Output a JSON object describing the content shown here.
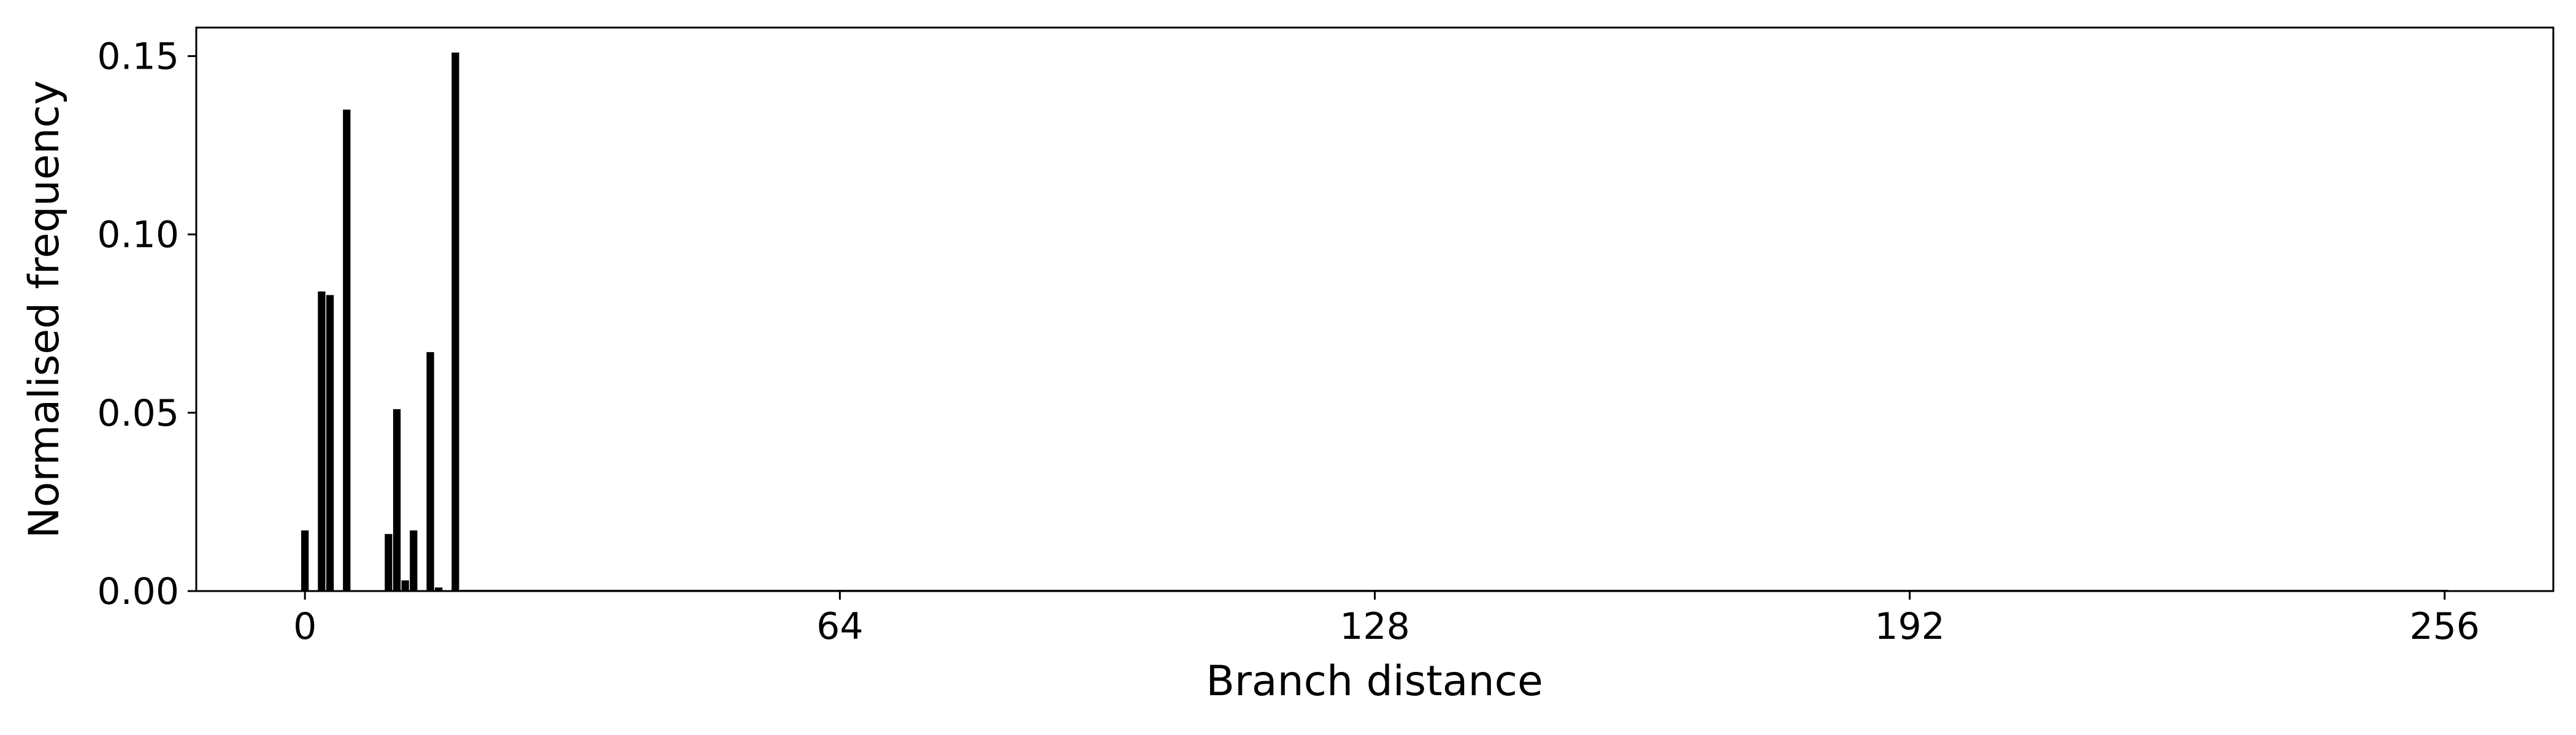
{
  "chart_data": {
    "type": "bar",
    "title": "",
    "xlabel": "Branch distance",
    "ylabel": "Normalised frequency",
    "xlim": [
      -13,
      269
    ],
    "ylim": [
      0,
      0.158
    ],
    "xticks": [
      0,
      64,
      128,
      192,
      256
    ],
    "yticks": [
      0.0,
      0.05,
      0.1,
      0.15
    ],
    "ytick_labels": [
      "0.00",
      "0.05",
      "0.10",
      "0.15"
    ],
    "bar_width": 0.9,
    "bar_color": "#000000",
    "grid": false,
    "x": [
      0,
      2,
      3,
      5,
      10,
      11,
      12,
      13,
      15,
      16,
      18
    ],
    "values": [
      0.017,
      0.084,
      0.083,
      0.135,
      0.016,
      0.051,
      0.003,
      0.017,
      0.067,
      0.001,
      0.151
    ],
    "baseline_range": [
      19,
      256
    ],
    "baseline_value": 0.0
  }
}
